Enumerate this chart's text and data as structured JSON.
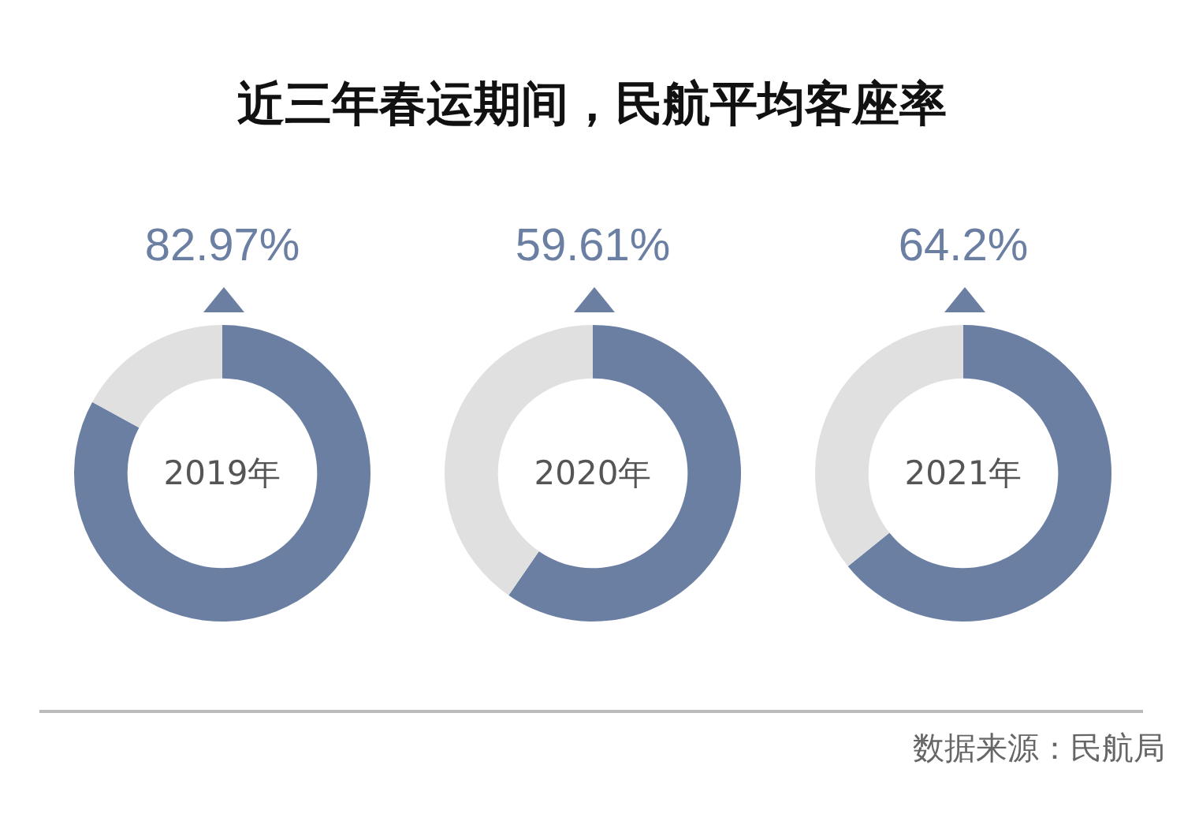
{
  "chart_data": [
    {
      "type": "donut",
      "title": "近三年春运期间，民航平均客座率",
      "subtitle": "2019年",
      "categories": [
        null,
        null
      ],
      "values": [
        82.97,
        17.03
      ],
      "colors": [
        "#6b7fa3",
        "#e0e0e0"
      ],
      "value_labels": [
        "82.97%",
        null
      ]
    },
    {
      "type": "donut",
      "subtitle": "2020年",
      "categories": [
        null,
        null
      ],
      "values": [
        59.61,
        40.39
      ],
      "colors": [
        "#6b7fa3",
        "#e0e0e0"
      ],
      "value_labels": [
        "59.61%",
        null
      ]
    },
    {
      "type": "donut",
      "subtitle": "2021年",
      "categories": [
        null,
        null
      ],
      "values": [
        64.2,
        35.8
      ],
      "colors": [
        "#6b7fa3",
        "#e0e0e0"
      ],
      "value_labels": [
        "64.2%",
        null
      ],
      "annotations": [
        "数据来源：民航局"
      ]
    }
  ]
}
